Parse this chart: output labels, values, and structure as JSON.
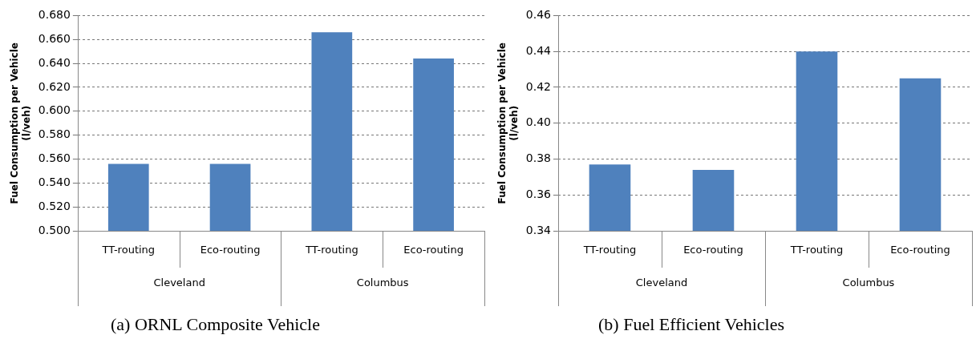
{
  "chart_data": [
    {
      "type": "bar",
      "title": "(a) ORNL Composite Vehicle",
      "ylabel": "Fuel Consumption per Vehicle\n(l/veh)",
      "categories": [
        "TT-routing",
        "Eco-routing",
        "TT-routing",
        "Eco-routing"
      ],
      "annotations": [
        "Cleveland",
        "Columbus"
      ],
      "series": [
        {
          "color": "#4f81bd",
          "values": [
            0.556,
            0.556,
            0.666,
            0.644
          ]
        }
      ],
      "ylim": [
        0.5,
        0.68
      ],
      "yticks": [
        {
          "value": 0.5,
          "label": "0.500"
        },
        {
          "value": 0.52,
          "label": "0.520"
        },
        {
          "value": 0.54,
          "label": "0.540"
        },
        {
          "value": 0.56,
          "label": "0.560"
        },
        {
          "value": 0.58,
          "label": "0.580"
        },
        {
          "value": 0.6,
          "label": "0.600"
        },
        {
          "value": 0.62,
          "label": "0.620"
        },
        {
          "value": 0.64,
          "label": "0.640"
        },
        {
          "value": 0.66,
          "label": "0.660"
        },
        {
          "value": 0.68,
          "label": "0.680"
        }
      ],
      "grid": "y",
      "legend": false
    },
    {
      "type": "bar",
      "title": "(b) Fuel Efficient Vehicles",
      "ylabel": "Fuel Consumption per Vehicle\n(l/veh)",
      "categories": [
        "TT-routing",
        "Eco-routing",
        "TT-routing",
        "Eco-routing"
      ],
      "annotations": [
        "Cleveland",
        "Columbus"
      ],
      "series": [
        {
          "color": "#4f81bd",
          "values": [
            0.377,
            0.374,
            0.44,
            0.425
          ]
        }
      ],
      "ylim": [
        0.34,
        0.46
      ],
      "yticks": [
        0.34,
        0.36,
        0.38,
        {
          "value": 0.4,
          "label": "0.40"
        },
        0.42,
        0.44,
        0.46
      ],
      "grid": "y",
      "legend": false
    }
  ]
}
